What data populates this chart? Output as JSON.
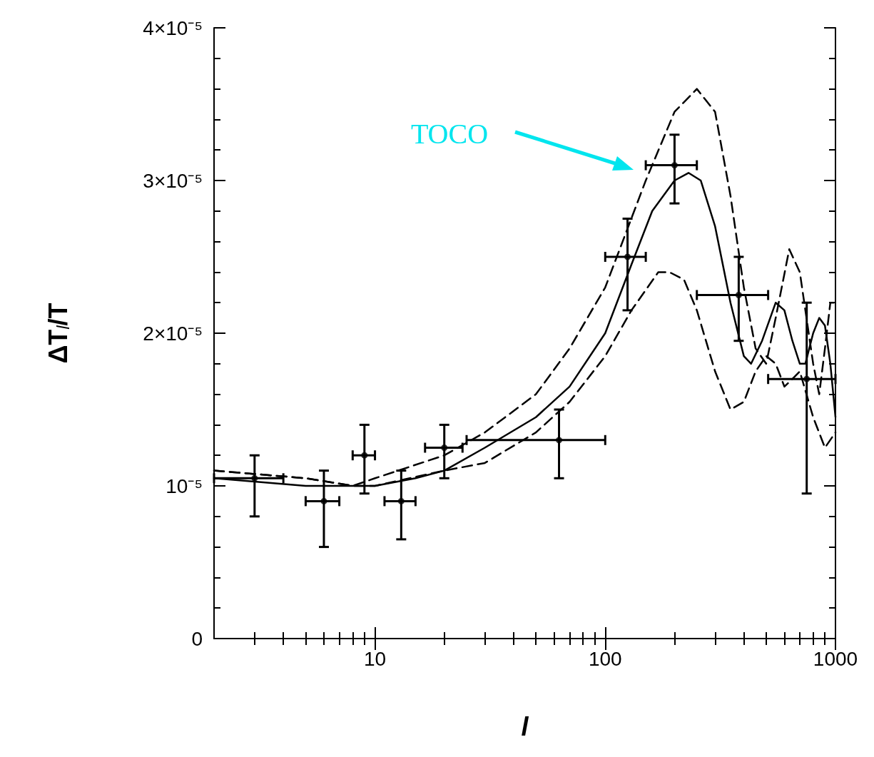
{
  "chart_data": {
    "type": "line",
    "xlabel": "l",
    "ylabel": "ΔT$_{l}$/T",
    "log": "x",
    "grid": false,
    "xlim": [
      2,
      1000
    ],
    "xticks": [
      {
        "value": 3,
        "label": null
      },
      {
        "value": 4,
        "label": null
      },
      {
        "value": 5,
        "label": null
      },
      {
        "value": 6,
        "label": null
      },
      {
        "value": 7,
        "label": null
      },
      {
        "value": 8,
        "label": null
      },
      {
        "value": 9,
        "label": null
      },
      10,
      {
        "value": 20,
        "label": null
      },
      {
        "value": 30,
        "label": null
      },
      {
        "value": 40,
        "label": null
      },
      {
        "value": 50,
        "label": null
      },
      {
        "value": 60,
        "label": null
      },
      {
        "value": 70,
        "label": null
      },
      {
        "value": 80,
        "label": null
      },
      {
        "value": 90,
        "label": null
      },
      100,
      {
        "value": 200,
        "label": null
      },
      {
        "value": 300,
        "label": null
      },
      {
        "value": 400,
        "label": null
      },
      {
        "value": 500,
        "label": null
      },
      {
        "value": 600,
        "label": null
      },
      {
        "value": 700,
        "label": null
      },
      {
        "value": 800,
        "label": null
      },
      {
        "value": 900,
        "label": null
      },
      1000
    ],
    "ylim": [
      0,
      4e-05
    ],
    "yticks": [
      0,
      {
        "value": 2e-06,
        "label": null
      },
      {
        "value": 4e-06,
        "label": null
      },
      {
        "value": 6e-06,
        "label": null
      },
      {
        "value": 8e-06,
        "label": null
      },
      {
        "value": 1e-05,
        "label": "10⁻⁵"
      },
      {
        "value": 1.2e-05,
        "label": null
      },
      {
        "value": 1.4e-05,
        "label": null
      },
      {
        "value": 1.6e-05,
        "label": null
      },
      {
        "value": 1.8e-05,
        "label": null
      },
      {
        "value": 2e-05,
        "label": "2×10⁻⁵"
      },
      {
        "value": 2.2e-05,
        "label": null
      },
      {
        "value": 2.4e-05,
        "label": null
      },
      {
        "value": 2.6e-05,
        "label": null
      },
      {
        "value": 2.8e-05,
        "label": null
      },
      {
        "value": 3e-05,
        "label": "3×10⁻⁵"
      },
      {
        "value": 3.2e-05,
        "label": null
      },
      {
        "value": 3.4e-05,
        "label": null
      },
      {
        "value": 3.6e-05,
        "label": null
      },
      {
        "value": 3.8e-05,
        "label": null
      },
      {
        "value": 4e-05,
        "label": "4×10⁻⁵"
      }
    ],
    "annotations": [
      "TOCO"
    ],
    "series": [
      {
        "type": "scatter",
        "color": "#000000",
        "marker": "circle",
        "x": [
          3,
          6,
          9,
          13,
          20,
          63,
          125,
          200,
          380,
          750
        ],
        "values": [
          1.05e-05,
          9e-06,
          1.2e-05,
          9e-06,
          1.25e-05,
          1.3e-05,
          2.5e-05,
          3.1e-05,
          2.25e-05,
          1.7e-05
        ],
        "errors": [
          [
            8e-06,
            1.2e-05
          ],
          [
            6e-06,
            1.1e-05
          ],
          [
            9.5e-06,
            1.4e-05
          ],
          [
            6.5e-06,
            1.1e-05
          ],
          [
            1.05e-05,
            1.4e-05
          ],
          [
            1.05e-05,
            1.5e-05
          ],
          [
            2.15e-05,
            2.75e-05
          ],
          [
            2.85e-05,
            3.3e-05
          ],
          [
            1.95e-05,
            2.5e-05
          ],
          [
            9.5e-06,
            2.2e-05
          ]
        ],
        "xerrors": [
          [
            2,
            4
          ],
          [
            5,
            7
          ],
          [
            8,
            10
          ],
          [
            11,
            15
          ],
          [
            16.5,
            24
          ],
          [
            25,
            100
          ],
          [
            100,
            150
          ],
          [
            150,
            250
          ],
          [
            250,
            510
          ],
          [
            510,
            1000
          ]
        ]
      },
      {
        "color": "#000000",
        "marker": "none",
        "line_style": "solid",
        "x": [
          2,
          5,
          8,
          10,
          15,
          20,
          30,
          50,
          70,
          100,
          130,
          160,
          200,
          230,
          260,
          300,
          350,
          400,
          430,
          480,
          550,
          600,
          650,
          700,
          740,
          800,
          850,
          900,
          950,
          1000
        ],
        "values": [
          1.05e-05,
          1e-05,
          1e-05,
          1e-05,
          1.05e-05,
          1.1e-05,
          1.25e-05,
          1.45e-05,
          1.65e-05,
          2e-05,
          2.45e-05,
          2.8e-05,
          3e-05,
          3.05e-05,
          3e-05,
          2.7e-05,
          2.2e-05,
          1.85e-05,
          1.8e-05,
          1.95e-05,
          2.2e-05,
          2.15e-05,
          1.95e-05,
          1.8e-05,
          1.8e-05,
          2e-05,
          2.1e-05,
          2.05e-05,
          1.8e-05,
          1.45e-05
        ]
      },
      {
        "color": "#000000",
        "marker": "none",
        "line_style": "dashed",
        "x": [
          2,
          5,
          8,
          10,
          20,
          30,
          50,
          70,
          100,
          150,
          200,
          250,
          300,
          350,
          400,
          450,
          500,
          550,
          630,
          700,
          800,
          850,
          900,
          950,
          1000
        ],
        "values": [
          1.1e-05,
          1.05e-05,
          1e-05,
          1.05e-05,
          1.2e-05,
          1.35e-05,
          1.6e-05,
          1.9e-05,
          2.3e-05,
          3e-05,
          3.45e-05,
          3.6e-05,
          3.45e-05,
          2.9e-05,
          2.3e-05,
          1.9e-05,
          1.8e-05,
          2.1e-05,
          2.55e-05,
          2.4e-05,
          1.8e-05,
          1.6e-05,
          1.9e-05,
          2.2e-05,
          2.2e-05
        ]
      },
      {
        "color": "#000000",
        "marker": "none",
        "line_style": "dashed",
        "x": [
          2,
          5,
          8,
          10,
          20,
          30,
          50,
          70,
          100,
          130,
          170,
          190,
          220,
          250,
          300,
          350,
          400,
          450,
          500,
          550,
          600,
          650,
          700,
          800,
          900,
          1000
        ],
        "values": [
          1.1e-05,
          1.05e-05,
          1e-05,
          1e-05,
          1.1e-05,
          1.15e-05,
          1.35e-05,
          1.55e-05,
          1.85e-05,
          2.15e-05,
          2.4e-05,
          2.4e-05,
          2.35e-05,
          2.15e-05,
          1.75e-05,
          1.5e-05,
          1.55e-05,
          1.75e-05,
          1.85e-05,
          1.8e-05,
          1.65e-05,
          1.7e-05,
          1.75e-05,
          1.45e-05,
          1.25e-05,
          1.35e-05
        ]
      }
    ]
  }
}
